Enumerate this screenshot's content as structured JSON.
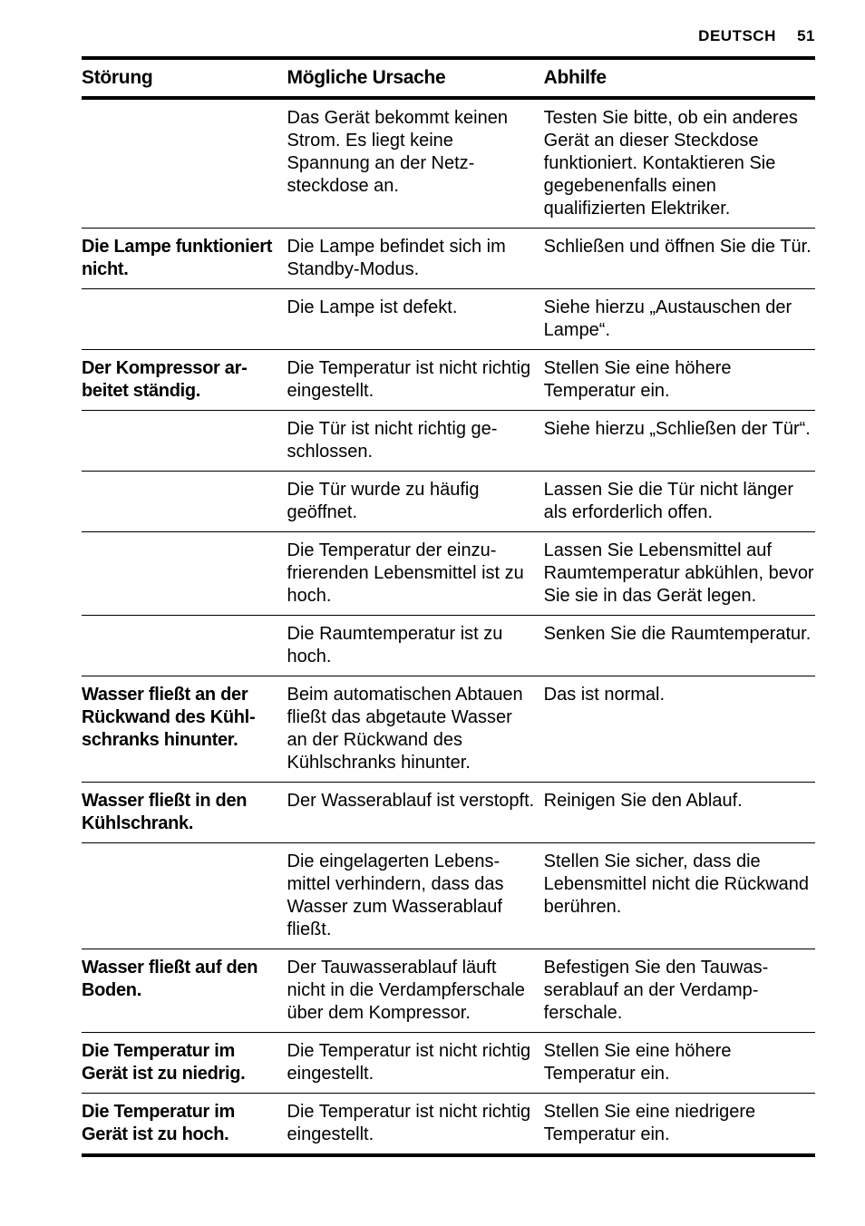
{
  "header": {
    "language": "DEUTSCH",
    "page_number": "51"
  },
  "table": {
    "headers": [
      "Störung",
      "Mögliche Ursache",
      "Abhilfe"
    ],
    "rows": [
      [
        "",
        "Das Gerät bekommt kei­nen Strom. Es liegt keine Spannung an der Netz­steckdose an.",
        "Testen Sie bitte, ob ein an­deres Gerät an dieser Steckdose funktioniert. Kontaktieren Sie gegebe­nenfalls einen qualifizierten Elektriker."
      ],
      [
        "Die Lampe funktio­niert nicht.",
        "Die Lampe befindet sich im Standby-Modus.",
        "Schließen und öffnen Sie die Tür."
      ],
      [
        "",
        "Die Lampe ist defekt.",
        "Siehe hierzu „Austauschen der Lampe“."
      ],
      [
        "Der Kompressor ar­beitet ständig.",
        "Die Temperatur ist nicht richtig eingestellt.",
        "Stellen Sie eine höhere Temperatur ein."
      ],
      [
        "",
        "Die Tür ist nicht richtig ge­schlossen.",
        "Siehe hierzu „Schließen der Tür“."
      ],
      [
        "",
        "Die Tür wurde zu häufig geöffnet.",
        "Lassen Sie die Tür nicht länger als erforderlich offen."
      ],
      [
        "",
        "Die Temperatur der einzu­frierenden Lebensmittel ist zu hoch.",
        "Lassen Sie Lebensmittel auf Raumtemperatur abkühlen, bevor Sie sie in das Gerät legen."
      ],
      [
        "",
        "Die Raumtemperatur ist zu hoch.",
        "Senken Sie die Raumtem­peratur."
      ],
      [
        "Wasser fließt an der Rückwand des Kühl­schranks hinunter.",
        "Beim automatischen Ab­tauen fließt das abgetaute Wasser an der Rückwand des Kühlschranks hinun­ter.",
        "Das ist normal."
      ],
      [
        "Wasser fließt in den Kühlschrank.",
        "Der Wasserablauf ist ver­stopft.",
        "Reinigen Sie den Ablauf."
      ],
      [
        "",
        "Die eingelagerten Lebens­mittel verhindern, dass das Wasser zum Wasserablauf fließt.",
        "Stellen Sie sicher, dass die Lebensmittel nicht die Rückwand berühren."
      ],
      [
        "Wasser fließt auf den Boden.",
        "Der Tauwasserablauf läuft nicht in die Verdampfer­schale über dem Kom­pressor.",
        "Befestigen Sie den Tauwas­serablauf an der Verdamp­ferschale."
      ],
      [
        "Die Temperatur im Gerät ist zu niedrig.",
        "Die Temperatur ist nicht richtig eingestellt.",
        "Stellen Sie eine höhere Temperatur ein."
      ],
      [
        "Die Temperatur im Gerät ist zu hoch.",
        "Die Temperatur ist nicht richtig eingestellt.",
        "Stellen Sie eine niedrigere Temperatur ein."
      ]
    ]
  }
}
